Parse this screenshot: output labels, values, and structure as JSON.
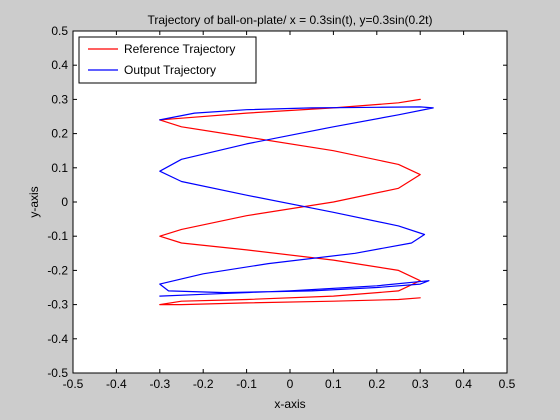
{
  "chart_data": {
    "type": "line",
    "title": "Trajectory of ball-on-plate/ x = 0.3sin(t), y=0.3sin(0.2t)",
    "xlabel": "x-axis",
    "ylabel": "y-axis",
    "xlim": [
      -0.5,
      0.5
    ],
    "ylim": [
      -0.5,
      0.5
    ],
    "xticks": [
      -0.5,
      -0.4,
      -0.3,
      -0.2,
      -0.1,
      0,
      0.1,
      0.2,
      0.3,
      0.4,
      0.5
    ],
    "yticks": [
      -0.5,
      -0.4,
      -0.3,
      -0.2,
      -0.1,
      0,
      0.1,
      0.2,
      0.3,
      0.4,
      0.5
    ],
    "xtick_labels": [
      "-0.5",
      "-0.4",
      "-0.3",
      "-0.2",
      "-0.1",
      "0",
      "0.1",
      "0.2",
      "0.3",
      "0.4",
      "0.5"
    ],
    "ytick_labels": [
      "-0.5",
      "-0.4",
      "-0.3",
      "-0.2",
      "-0.1",
      "0",
      "0.1",
      "0.2",
      "0.3",
      "0.4",
      "0.5"
    ],
    "grid": false,
    "legend_position": "top-left",
    "series": [
      {
        "name": "Reference Trajectory",
        "color": "#ff0000",
        "x": [
          0.3,
          0.25,
          0.1,
          -0.1,
          -0.25,
          -0.3,
          -0.25,
          -0.1,
          0.1,
          0.25,
          0.3,
          0.25,
          0.1,
          -0.1,
          -0.25,
          -0.3,
          -0.25,
          -0.1,
          0.1,
          0.25,
          0.3,
          0.25,
          0.1,
          -0.1,
          -0.25,
          -0.3,
          -0.25,
          -0.1,
          0.1,
          0.25,
          0.3
        ],
        "y": [
          0.3,
          0.29,
          0.275,
          0.26,
          0.245,
          0.24,
          0.22,
          0.19,
          0.15,
          0.11,
          0.08,
          0.04,
          0.0,
          -0.04,
          -0.08,
          -0.1,
          -0.12,
          -0.14,
          -0.17,
          -0.2,
          -0.23,
          -0.26,
          -0.275,
          -0.285,
          -0.29,
          -0.3,
          -0.3,
          -0.295,
          -0.29,
          -0.285,
          -0.28
        ]
      },
      {
        "name": "Output Trajectory",
        "color": "#0000ff",
        "x": [
          -0.3,
          -0.22,
          -0.1,
          0.05,
          0.2,
          0.3,
          0.33,
          0.25,
          0.1,
          -0.1,
          -0.25,
          -0.3,
          -0.25,
          -0.1,
          0.1,
          0.25,
          0.31,
          0.28,
          0.15,
          -0.05,
          -0.2,
          -0.3,
          -0.28,
          -0.15,
          0.05,
          0.2,
          0.3,
          0.32,
          0.2,
          0.0,
          -0.2,
          -0.3
        ],
        "y": [
          0.24,
          0.26,
          0.27,
          0.275,
          0.277,
          0.278,
          0.275,
          0.255,
          0.22,
          0.17,
          0.125,
          0.09,
          0.06,
          0.02,
          -0.03,
          -0.07,
          -0.095,
          -0.12,
          -0.15,
          -0.18,
          -0.21,
          -0.24,
          -0.26,
          -0.265,
          -0.26,
          -0.25,
          -0.24,
          -0.23,
          -0.245,
          -0.26,
          -0.27,
          -0.275
        ]
      }
    ]
  }
}
